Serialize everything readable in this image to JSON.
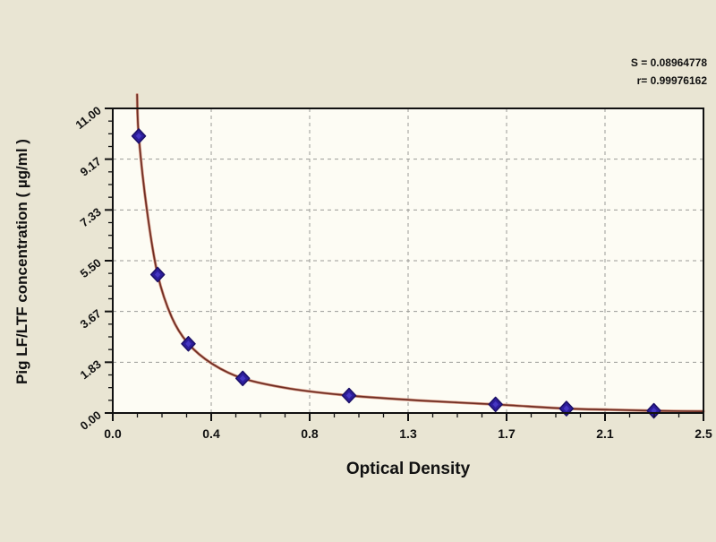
{
  "colors": {
    "background": "#e9e5d3",
    "plot_background": "#fdfcf4",
    "frame": "#111111",
    "grid": "#9a9a96",
    "curve": "#6e2d23",
    "curve_halo": "#d89a86",
    "marker": "#2c1d9b",
    "marker_inner": "#4a3cc9",
    "marker_edge": "#1b1066",
    "text": "#111111"
  },
  "stats": {
    "s_label": "S = 0.08964778",
    "r_label": "r= 0.99976162"
  },
  "chart_data": {
    "type": "scatter",
    "title": "",
    "xlabel": "Optical Density",
    "ylabel": "Pig LF/LTF concentration ( µg/ml )",
    "xlim": [
      0,
      2.5
    ],
    "ylim": [
      0,
      11
    ],
    "grid": true,
    "legend": "none",
    "x_ticks": {
      "values": [
        0,
        0.4167,
        0.8333,
        1.25,
        1.6667,
        2.0833,
        2.5
      ],
      "labels": [
        "0.0",
        "0.4",
        "0.8",
        "1.3",
        "1.7",
        "2.1",
        "2.5"
      ]
    },
    "y_ticks": {
      "values": [
        0,
        1.8333,
        3.6667,
        5.5,
        7.3333,
        9.1667,
        11
      ],
      "labels": [
        "0.00",
        "1.83",
        "3.67",
        "5.50",
        "7.33",
        "9.17",
        "11.00"
      ]
    },
    "minor_divisions": 4,
    "points": [
      {
        "x": 0.11,
        "y": 10.0
      },
      {
        "x": 0.19,
        "y": 5.0
      },
      {
        "x": 0.32,
        "y": 2.5
      },
      {
        "x": 0.55,
        "y": 1.25
      },
      {
        "x": 1.0,
        "y": 0.63
      },
      {
        "x": 1.62,
        "y": 0.31
      },
      {
        "x": 1.92,
        "y": 0.16
      },
      {
        "x": 2.29,
        "y": 0.08
      }
    ],
    "curve_points": [
      {
        "x": 0.103,
        "y": 11.5
      },
      {
        "x": 0.11,
        "y": 10.0
      },
      {
        "x": 0.145,
        "y": 7.3
      },
      {
        "x": 0.19,
        "y": 5.0
      },
      {
        "x": 0.25,
        "y": 3.45
      },
      {
        "x": 0.32,
        "y": 2.5
      },
      {
        "x": 0.42,
        "y": 1.78
      },
      {
        "x": 0.55,
        "y": 1.25
      },
      {
        "x": 0.75,
        "y": 0.88
      },
      {
        "x": 1.0,
        "y": 0.63
      },
      {
        "x": 1.3,
        "y": 0.45
      },
      {
        "x": 1.62,
        "y": 0.31
      },
      {
        "x": 1.92,
        "y": 0.16
      },
      {
        "x": 2.1,
        "y": 0.12
      },
      {
        "x": 2.29,
        "y": 0.08
      },
      {
        "x": 2.5,
        "y": 0.06
      }
    ],
    "fit_stats": {
      "S": 0.08964778,
      "r": 0.99976162
    }
  }
}
